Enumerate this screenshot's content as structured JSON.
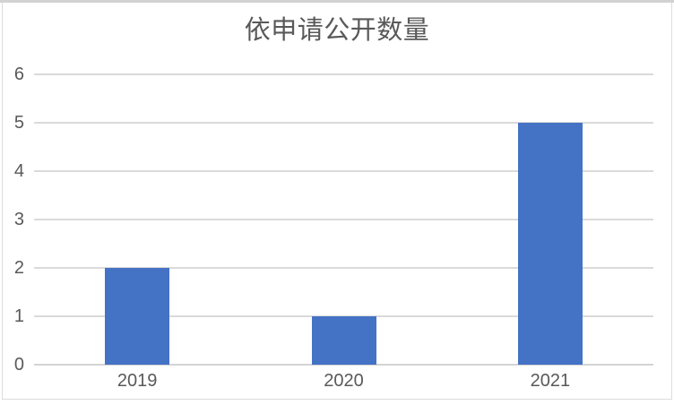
{
  "chart_data": {
    "type": "bar",
    "title": "依申请公开数量",
    "categories": [
      "2019",
      "2020",
      "2021"
    ],
    "values": [
      2,
      1,
      5
    ],
    "xlabel": "",
    "ylabel": "",
    "ylim": [
      0,
      6
    ],
    "yticks": [
      "0",
      "1",
      "2",
      "3",
      "4",
      "5",
      "6"
    ],
    "grid": true,
    "legend_position": "none",
    "bar_color": "#4472C4",
    "gridline_color": "#dadada",
    "axis_text_color": "#595959",
    "title_color": "#595959",
    "frame_color": "#dcdcdc",
    "background": "#ffffff"
  }
}
